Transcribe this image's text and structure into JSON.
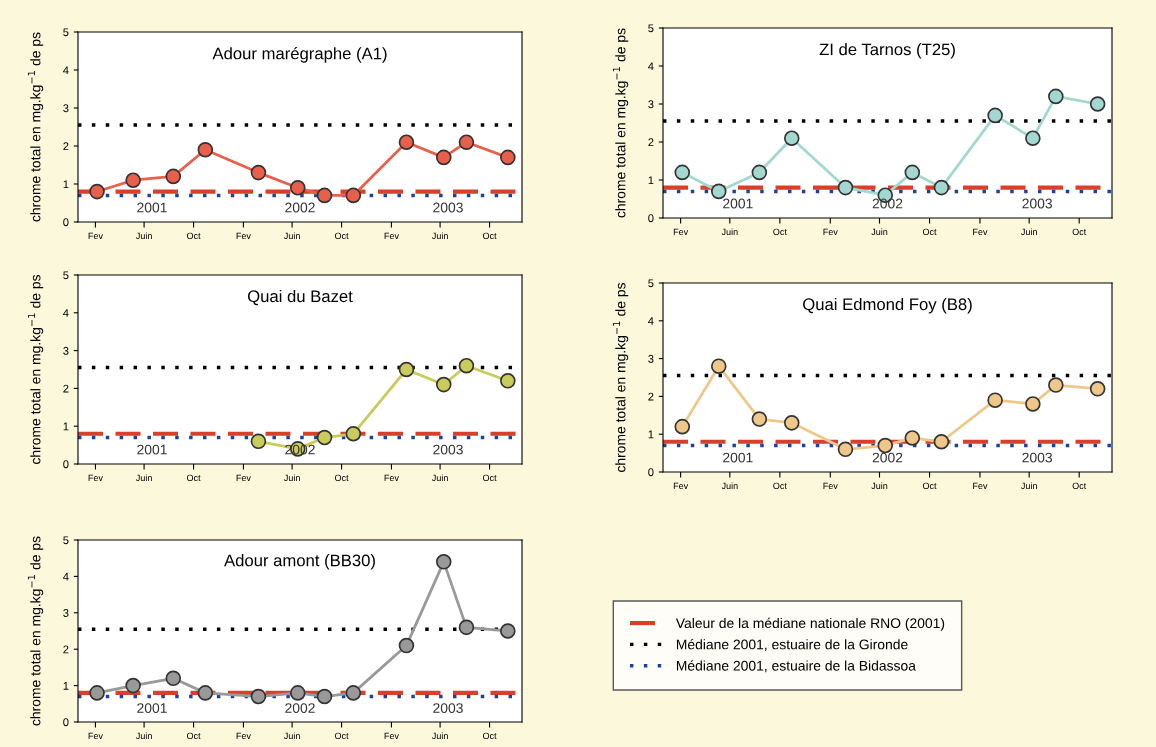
{
  "chart_data": [
    {
      "type": "line",
      "title": "Adour marégraphe (A1)",
      "ylabel": "chrome total en mg.kg$^{−1}$ de ps",
      "x": [
        "2001-02-05",
        "2001-05-05",
        "2001-08-12",
        "2001-10-30",
        "2002-03-10",
        "2002-06-15",
        "2002-08-20",
        "2002-10-30",
        "2003-03-10",
        "2003-06-10",
        "2003-08-05",
        "2003-11-15"
      ],
      "series": [
        {
          "color": "#e8604c",
          "values": [
            0.8,
            1.1,
            1.2,
            1.9,
            1.3,
            0.9,
            0.7,
            0.7,
            2.1,
            1.7,
            2.1,
            1.7
          ]
        }
      ],
      "xlim": [
        "2000-12-20",
        "2003-12-20"
      ],
      "ylim": [
        0,
        5
      ],
      "yticks": [
        0,
        1,
        2,
        3,
        4,
        5
      ],
      "xticks": [
        {
          "value": "2001-02-01",
          "label": "Fev"
        },
        {
          "value": "2001-06-01",
          "label": "Juin"
        },
        {
          "value": "2001-10-01",
          "label": "Oct"
        },
        {
          "value": "2002-02-01",
          "label": "Fev"
        },
        {
          "value": "2002-06-01",
          "label": "Juin"
        },
        {
          "value": "2002-10-01",
          "label": "Oct"
        },
        {
          "value": "2003-02-01",
          "label": "Fev"
        },
        {
          "value": "2003-06-01",
          "label": "Juin"
        },
        {
          "value": "2003-10-01",
          "label": "Oct"
        }
      ],
      "ref_lines": [
        {
          "axis": "y",
          "value": 0.8,
          "color": "#d8402c",
          "line_style": "dashed"
        },
        {
          "axis": "y",
          "value": 2.55,
          "color": "#000000",
          "line_style": "dotted"
        },
        {
          "axis": "y",
          "value": 0.7,
          "color": "#2040a0",
          "line_style": "dotted"
        }
      ],
      "annotations": [
        "2001",
        "2002",
        "2003"
      ],
      "marker": "circle",
      "line_style": "solid",
      "grid": false
    },
    {
      "type": "line",
      "title": "ZI de Tarnos (T25)",
      "ylabel": "chrome total en mg.kg$^{−1}$ de ps",
      "x": [
        "2001-02-05",
        "2001-05-05",
        "2001-08-12",
        "2001-10-30",
        "2002-03-10",
        "2002-06-15",
        "2002-08-20",
        "2002-10-30",
        "2003-03-10",
        "2003-06-10",
        "2003-08-05",
        "2003-11-15"
      ],
      "series": [
        {
          "color": "#a2d8cf",
          "values": [
            1.2,
            0.7,
            1.2,
            2.1,
            0.8,
            0.6,
            1.2,
            0.8,
            2.7,
            2.1,
            3.2,
            3.0
          ]
        }
      ],
      "xlim": [
        "2000-12-20",
        "2003-12-20"
      ],
      "ylim": [
        0,
        5
      ],
      "yticks": [
        0,
        1,
        2,
        3,
        4,
        5
      ],
      "xticks": [
        {
          "value": "2001-02-01",
          "label": "Fev"
        },
        {
          "value": "2001-06-01",
          "label": "Juin"
        },
        {
          "value": "2001-10-01",
          "label": "Oct"
        },
        {
          "value": "2002-02-01",
          "label": "Fev"
        },
        {
          "value": "2002-06-01",
          "label": "Juin"
        },
        {
          "value": "2002-10-01",
          "label": "Oct"
        },
        {
          "value": "2003-02-01",
          "label": "Fev"
        },
        {
          "value": "2003-06-01",
          "label": "Juin"
        },
        {
          "value": "2003-10-01",
          "label": "Oct"
        }
      ],
      "ref_lines": [
        {
          "axis": "y",
          "value": 0.8,
          "color": "#d8402c",
          "line_style": "dashed"
        },
        {
          "axis": "y",
          "value": 2.55,
          "color": "#000000",
          "line_style": "dotted"
        },
        {
          "axis": "y",
          "value": 0.7,
          "color": "#2040a0",
          "line_style": "dotted"
        }
      ],
      "annotations": [
        "2001",
        "2002",
        "2003"
      ],
      "marker": "circle",
      "line_style": "solid",
      "grid": false
    },
    {
      "type": "line",
      "title": "Quai du Bazet",
      "ylabel": "chrome total en mg.kg$^{−1}$ de ps",
      "x": [
        "2002-03-10",
        "2002-06-15",
        "2002-08-20",
        "2002-10-30",
        "2003-03-10",
        "2003-06-10",
        "2003-08-05",
        "2003-11-15"
      ],
      "series": [
        {
          "color": "#c9cc5c",
          "values": [
            0.6,
            0.4,
            0.7,
            0.8,
            2.5,
            2.1,
            2.6,
            2.2
          ]
        }
      ],
      "xlim": [
        "2000-12-20",
        "2003-12-20"
      ],
      "ylim": [
        0,
        5
      ],
      "yticks": [
        0,
        1,
        2,
        3,
        4,
        5
      ],
      "xticks": [
        {
          "value": "2001-02-01",
          "label": "Fev"
        },
        {
          "value": "2001-06-01",
          "label": "Juin"
        },
        {
          "value": "2001-10-01",
          "label": "Oct"
        },
        {
          "value": "2002-02-01",
          "label": "Fev"
        },
        {
          "value": "2002-06-01",
          "label": "Juin"
        },
        {
          "value": "2002-10-01",
          "label": "Oct"
        },
        {
          "value": "2003-02-01",
          "label": "Fev"
        },
        {
          "value": "2003-06-01",
          "label": "Juin"
        },
        {
          "value": "2003-10-01",
          "label": "Oct"
        }
      ],
      "ref_lines": [
        {
          "axis": "y",
          "value": 0.8,
          "color": "#d8402c",
          "line_style": "dashed"
        },
        {
          "axis": "y",
          "value": 2.55,
          "color": "#000000",
          "line_style": "dotted"
        },
        {
          "axis": "y",
          "value": 0.7,
          "color": "#2040a0",
          "line_style": "dotted"
        }
      ],
      "annotations": [
        "2001",
        "2002",
        "2003"
      ],
      "marker": "circle",
      "line_style": "solid",
      "grid": false
    },
    {
      "type": "line",
      "title": "Quai Edmond Foy (B8)",
      "ylabel": "chrome total en mg.kg$^{−1}$ de ps",
      "x": [
        "2001-02-05",
        "2001-05-05",
        "2001-08-12",
        "2001-10-30",
        "2002-03-10",
        "2002-06-15",
        "2002-08-20",
        "2002-10-30",
        "2003-03-10",
        "2003-06-10",
        "2003-08-05",
        "2003-11-15"
      ],
      "series": [
        {
          "color": "#efc889",
          "values": [
            1.2,
            2.8,
            1.4,
            1.3,
            0.6,
            0.7,
            0.9,
            0.8,
            1.9,
            1.8,
            2.3,
            2.2
          ]
        }
      ],
      "xlim": [
        "2000-12-20",
        "2003-12-20"
      ],
      "ylim": [
        0,
        5
      ],
      "yticks": [
        0,
        1,
        2,
        3,
        4,
        5
      ],
      "xticks": [
        {
          "value": "2001-02-01",
          "label": "Fev"
        },
        {
          "value": "2001-06-01",
          "label": "Juin"
        },
        {
          "value": "2001-10-01",
          "label": "Oct"
        },
        {
          "value": "2002-02-01",
          "label": "Fev"
        },
        {
          "value": "2002-06-01",
          "label": "Juin"
        },
        {
          "value": "2002-10-01",
          "label": "Oct"
        },
        {
          "value": "2003-02-01",
          "label": "Fev"
        },
        {
          "value": "2003-06-01",
          "label": "Juin"
        },
        {
          "value": "2003-10-01",
          "label": "Oct"
        }
      ],
      "ref_lines": [
        {
          "axis": "y",
          "value": 0.8,
          "color": "#d8402c",
          "line_style": "dashed"
        },
        {
          "axis": "y",
          "value": 2.55,
          "color": "#000000",
          "line_style": "dotted"
        },
        {
          "axis": "y",
          "value": 0.7,
          "color": "#2040a0",
          "line_style": "dotted"
        }
      ],
      "annotations": [
        "2001",
        "2002",
        "2003"
      ],
      "marker": "circle",
      "line_style": "solid",
      "grid": false
    },
    {
      "type": "line",
      "title": "Adour amont (BB30)",
      "ylabel": "chrome total en mg.kg$^{−1}$ de ps",
      "x": [
        "2001-02-05",
        "2001-05-05",
        "2001-08-12",
        "2001-10-30",
        "2002-03-10",
        "2002-06-15",
        "2002-08-20",
        "2002-10-30",
        "2003-03-10",
        "2003-06-10",
        "2003-08-05",
        "2003-11-15"
      ],
      "series": [
        {
          "color": "#999999",
          "values": [
            0.8,
            1.0,
            1.2,
            0.8,
            0.7,
            0.8,
            0.7,
            0.8,
            2.1,
            4.4,
            2.6,
            2.5
          ]
        }
      ],
      "xlim": [
        "2000-12-20",
        "2003-12-20"
      ],
      "ylim": [
        0,
        5
      ],
      "yticks": [
        0,
        1,
        2,
        3,
        4,
        5
      ],
      "xticks": [
        {
          "value": "2001-02-01",
          "label": "Fev"
        },
        {
          "value": "2001-06-01",
          "label": "Juin"
        },
        {
          "value": "2001-10-01",
          "label": "Oct"
        },
        {
          "value": "2002-02-01",
          "label": "Fev"
        },
        {
          "value": "2002-06-01",
          "label": "Juin"
        },
        {
          "value": "2002-10-01",
          "label": "Oct"
        },
        {
          "value": "2003-02-01",
          "label": "Fev"
        },
        {
          "value": "2003-06-01",
          "label": "Juin"
        },
        {
          "value": "2003-10-01",
          "label": "Oct"
        }
      ],
      "ref_lines": [
        {
          "axis": "y",
          "value": 0.8,
          "color": "#d8402c",
          "line_style": "dashed",
          "label": "Valeur de la médiane nationale RNO (2001)"
        },
        {
          "axis": "y",
          "value": 2.55,
          "color": "#000000",
          "line_style": "dotted",
          "label": "Médiane 2001, estuaire de la Gironde"
        },
        {
          "axis": "y",
          "value": 0.7,
          "color": "#2040a0",
          "line_style": "dotted",
          "label": "Médiane 2001, estuaire de la Bidassoa"
        }
      ],
      "annotations": [
        "2001",
        "2002",
        "2003"
      ],
      "marker": "circle",
      "line_style": "solid",
      "grid": false,
      "legend": "right"
    }
  ]
}
